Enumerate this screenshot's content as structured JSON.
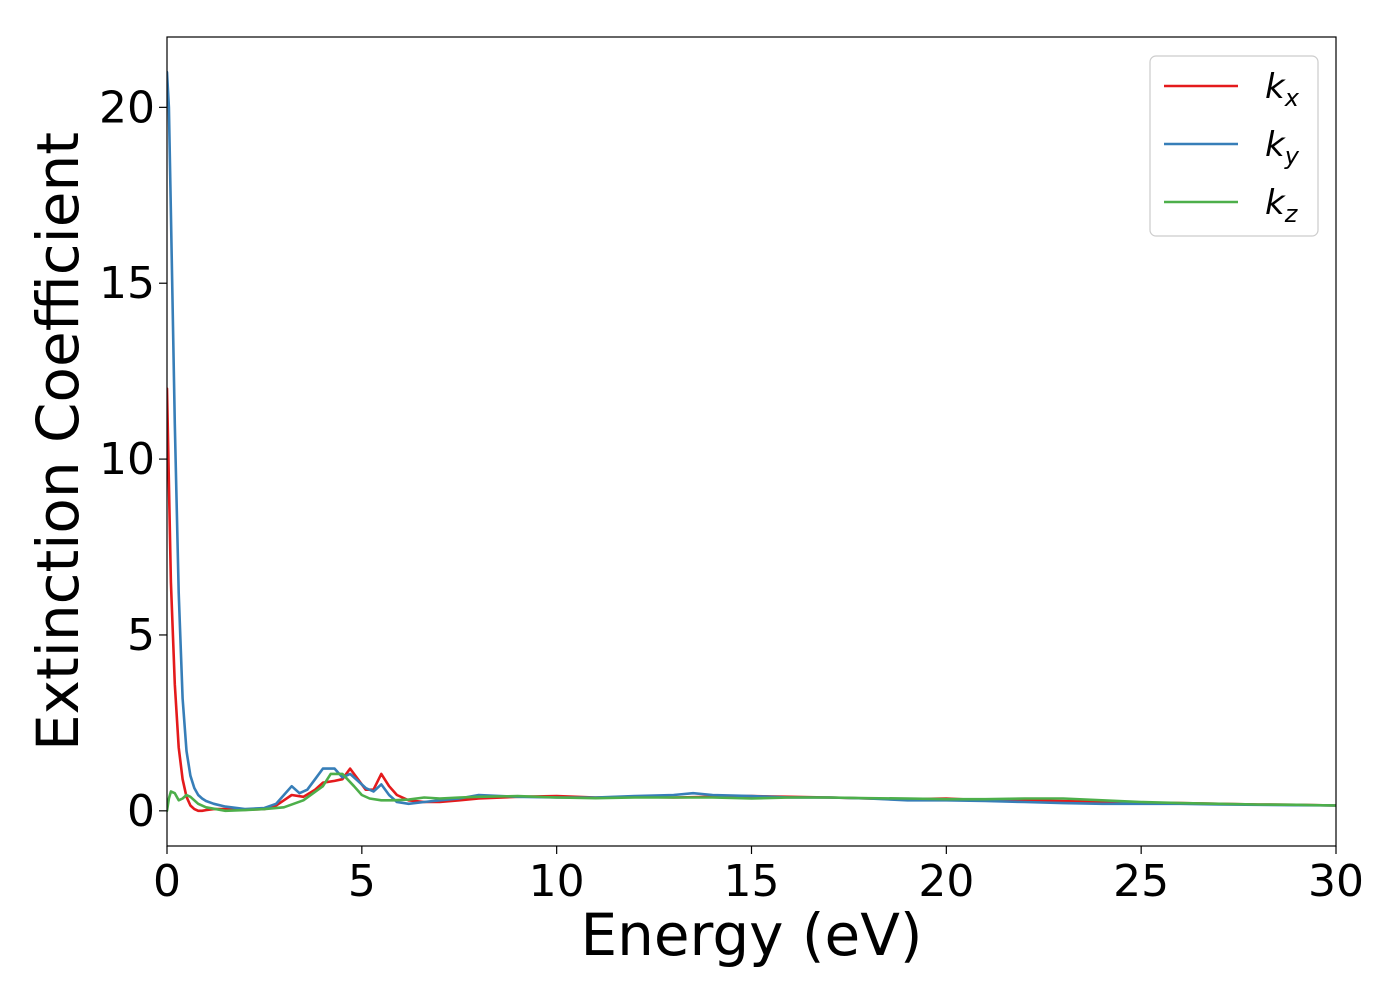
{
  "chart_data": {
    "type": "line",
    "xlabel": "Energy (eV)",
    "ylabel": "Extinction Coefficient",
    "xlim": [
      0,
      30
    ],
    "ylim": [
      -1,
      22
    ],
    "xticks": [
      "0",
      "5",
      "10",
      "15",
      "20",
      "25",
      "30"
    ],
    "yticks": [
      "0",
      "5",
      "10",
      "15",
      "20"
    ],
    "grid": false,
    "legend_position": "top-right",
    "series": [
      {
        "name": "k_x",
        "label_base": "k",
        "label_sub": "x",
        "color": "#e41a1c",
        "x": [
          0.0,
          0.1,
          0.2,
          0.3,
          0.4,
          0.5,
          0.6,
          0.7,
          0.8,
          0.9,
          1.0,
          1.2,
          1.5,
          2.0,
          2.5,
          2.8,
          3.0,
          3.2,
          3.5,
          3.8,
          4.0,
          4.3,
          4.5,
          4.7,
          4.9,
          5.1,
          5.3,
          5.5,
          5.7,
          5.9,
          6.2,
          6.6,
          7.0,
          7.5,
          8.0,
          9.0,
          10.0,
          11.0,
          12.0,
          13.0,
          14.0,
          15.0,
          16.0,
          17.0,
          18.0,
          19.0,
          20.0,
          21.0,
          22.0,
          23.0,
          24.0,
          25.0,
          26.0,
          27.0,
          28.0,
          29.0,
          30.0
        ],
        "values": [
          12.0,
          6.5,
          3.6,
          1.8,
          0.9,
          0.4,
          0.15,
          0.05,
          0.0,
          0.0,
          0.02,
          0.05,
          0.05,
          0.03,
          0.05,
          0.15,
          0.3,
          0.45,
          0.4,
          0.6,
          0.8,
          0.85,
          0.9,
          1.2,
          0.9,
          0.6,
          0.6,
          1.05,
          0.7,
          0.45,
          0.3,
          0.25,
          0.25,
          0.3,
          0.35,
          0.4,
          0.42,
          0.38,
          0.4,
          0.38,
          0.4,
          0.42,
          0.4,
          0.38,
          0.35,
          0.33,
          0.35,
          0.3,
          0.3,
          0.28,
          0.25,
          0.23,
          0.22,
          0.2,
          0.18,
          0.17,
          0.15
        ]
      },
      {
        "name": "k_y",
        "label_base": "k",
        "label_sub": "y",
        "color": "#377eb8",
        "x": [
          0.0,
          0.05,
          0.1,
          0.2,
          0.3,
          0.4,
          0.5,
          0.6,
          0.7,
          0.8,
          0.9,
          1.0,
          1.2,
          1.5,
          2.0,
          2.5,
          2.8,
          3.0,
          3.2,
          3.4,
          3.6,
          3.8,
          4.0,
          4.3,
          4.5,
          4.7,
          4.9,
          5.1,
          5.3,
          5.5,
          5.7,
          5.9,
          6.2,
          6.6,
          7.0,
          7.5,
          8.0,
          9.0,
          10.0,
          11.0,
          12.0,
          13.0,
          13.5,
          14.0,
          15.0,
          16.0,
          17.0,
          18.0,
          19.0,
          20.0,
          21.0,
          22.0,
          23.0,
          24.0,
          25.0,
          26.0,
          27.0,
          28.0,
          29.0,
          30.0
        ],
        "values": [
          21.0,
          20.0,
          17.0,
          11.0,
          6.2,
          3.2,
          1.7,
          1.0,
          0.65,
          0.45,
          0.35,
          0.28,
          0.2,
          0.12,
          0.05,
          0.08,
          0.2,
          0.45,
          0.7,
          0.5,
          0.6,
          0.9,
          1.2,
          1.2,
          0.95,
          1.05,
          0.85,
          0.65,
          0.55,
          0.75,
          0.45,
          0.25,
          0.2,
          0.25,
          0.3,
          0.35,
          0.45,
          0.4,
          0.38,
          0.38,
          0.42,
          0.45,
          0.5,
          0.45,
          0.42,
          0.38,
          0.38,
          0.35,
          0.3,
          0.3,
          0.28,
          0.25,
          0.22,
          0.2,
          0.2,
          0.2,
          0.18,
          0.17,
          0.16,
          0.15
        ]
      },
      {
        "name": "k_z",
        "label_base": "k",
        "label_sub": "z",
        "color": "#4daf4a",
        "x": [
          0.0,
          0.05,
          0.1,
          0.2,
          0.3,
          0.4,
          0.5,
          0.6,
          0.8,
          1.0,
          1.5,
          2.0,
          2.5,
          3.0,
          3.5,
          4.0,
          4.2,
          4.5,
          4.8,
          5.0,
          5.2,
          5.5,
          5.8,
          6.2,
          6.6,
          7.0,
          7.5,
          8.0,
          9.0,
          10.0,
          11.0,
          12.0,
          13.0,
          14.0,
          15.0,
          16.0,
          17.0,
          18.0,
          19.0,
          20.0,
          21.0,
          22.0,
          23.0,
          24.0,
          25.0,
          26.0,
          27.0,
          28.0,
          29.0,
          30.0
        ],
        "values": [
          0.0,
          0.35,
          0.55,
          0.5,
          0.3,
          0.35,
          0.45,
          0.4,
          0.2,
          0.1,
          0.0,
          0.02,
          0.05,
          0.1,
          0.3,
          0.7,
          1.05,
          1.05,
          0.7,
          0.45,
          0.35,
          0.3,
          0.3,
          0.32,
          0.38,
          0.35,
          0.38,
          0.4,
          0.42,
          0.38,
          0.36,
          0.38,
          0.38,
          0.38,
          0.35,
          0.38,
          0.38,
          0.36,
          0.35,
          0.33,
          0.33,
          0.35,
          0.35,
          0.3,
          0.25,
          0.22,
          0.2,
          0.18,
          0.17,
          0.15
        ]
      }
    ]
  }
}
